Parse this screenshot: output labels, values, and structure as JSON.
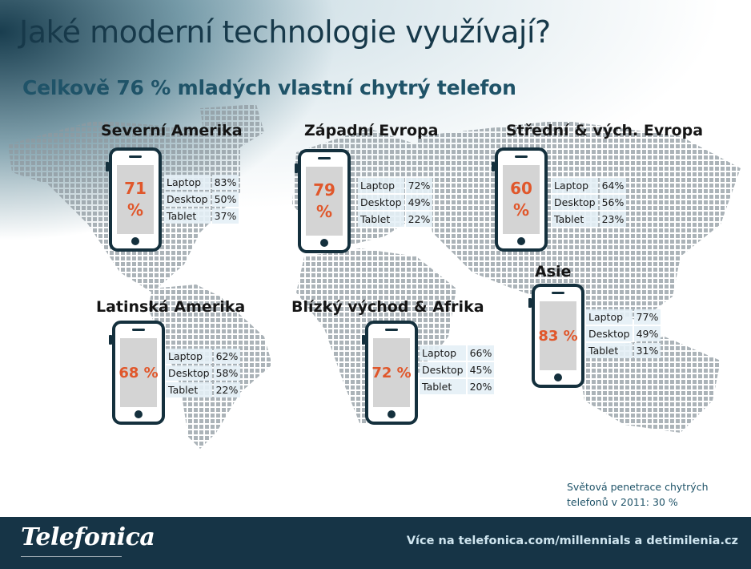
{
  "title": "Jaké moderní technologie využívají?",
  "subtitle": "Celkově 76 % mladých vlastní chytrý telefon",
  "stat_labels": [
    "Laptop",
    "Desktop",
    "Tablet"
  ],
  "regions": [
    {
      "name": "Severní Amerika",
      "smartphone": "71 %",
      "stats": [
        "83%",
        "50%",
        "37%"
      ]
    },
    {
      "name": "Západní Evropa",
      "smartphone": "79 %",
      "stats": [
        "72%",
        "49%",
        "22%"
      ]
    },
    {
      "name": "Střední & vých. Evropa",
      "smartphone": "60 %",
      "stats": [
        "64%",
        "56%",
        "23%"
      ]
    },
    {
      "name": "Latinská Amerika",
      "smartphone": "68 %",
      "stats": [
        "62%",
        "58%",
        "22%"
      ]
    },
    {
      "name": "Blízký východ & Afrika",
      "smartphone": "72 %",
      "stats": [
        "66%",
        "45%",
        "20%"
      ]
    },
    {
      "name": "Asie",
      "smartphone": "83 %",
      "stats": [
        "77%",
        "49%",
        "31%"
      ]
    }
  ],
  "footnote": "Světová penetrace chytrých telefonů v 2011: 30 %",
  "footer": {
    "logo": "Telefonica",
    "link": "Více na telefonica.com/millennials a detimilenia.cz"
  },
  "colors": {
    "accent": "#e0572b",
    "dark_blue": "#163446",
    "phone_outline": "#14303d",
    "map_dot": "#8f9aa0"
  },
  "icons": [
    "smartphone-icon",
    "world-map-illustration",
    "telefonica-logo"
  ]
}
